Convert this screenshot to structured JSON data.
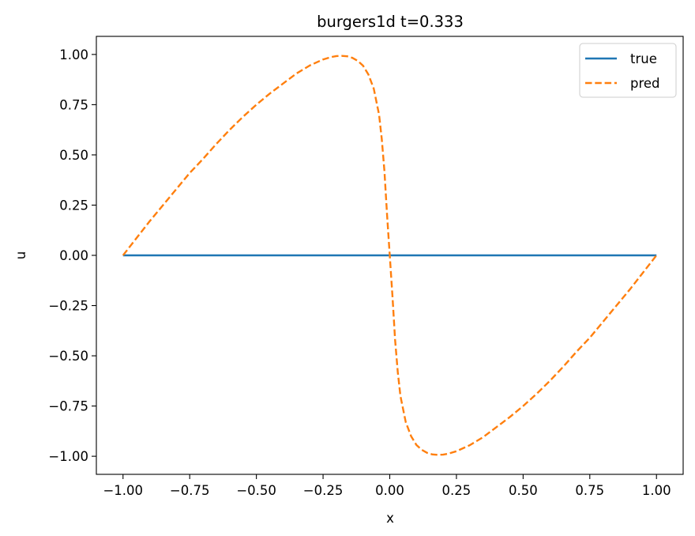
{
  "chart_data": {
    "type": "line",
    "title": "burgers1d  t=0.333",
    "xlabel": "x",
    "ylabel": "u",
    "xlim": [
      -1.1,
      1.1
    ],
    "ylim": [
      -1.09,
      1.09
    ],
    "xticks": [
      -1.0,
      -0.75,
      -0.5,
      -0.25,
      0.0,
      0.25,
      0.5,
      0.75,
      1.0
    ],
    "xtick_labels": [
      "−1.00",
      "−0.75",
      "−0.50",
      "−0.25",
      "0.00",
      "0.25",
      "0.50",
      "0.75",
      "1.00"
    ],
    "yticks": [
      1.0,
      0.75,
      0.5,
      0.25,
      0.0,
      -0.25,
      -0.5,
      -0.75,
      -1.0
    ],
    "ytick_labels": [
      "1.00",
      "0.75",
      "0.50",
      "0.25",
      "0.00",
      "−0.25",
      "−0.50",
      "−0.75",
      "−1.00"
    ],
    "grid": false,
    "legend_position": "top-right",
    "series": [
      {
        "name": "true",
        "color": "#1f77b4",
        "style": "solid",
        "x": [
          -1.0,
          1.0
        ],
        "y": [
          0.0,
          0.0
        ]
      },
      {
        "name": "pred",
        "color": "#ff7f0e",
        "style": "dashed",
        "x": [
          -1.0,
          -0.95,
          -0.9,
          -0.85,
          -0.8,
          -0.75,
          -0.7,
          -0.65,
          -0.6,
          -0.55,
          -0.5,
          -0.45,
          -0.4,
          -0.35,
          -0.3,
          -0.25,
          -0.22,
          -0.2,
          -0.18,
          -0.16,
          -0.14,
          -0.12,
          -0.1,
          -0.08,
          -0.06,
          -0.04,
          -0.03,
          -0.02,
          -0.015,
          -0.01,
          -0.005,
          0.0,
          0.005,
          0.01,
          0.015,
          0.02,
          0.03,
          0.04,
          0.06,
          0.08,
          0.1,
          0.12,
          0.14,
          0.16,
          0.18,
          0.2,
          0.22,
          0.25,
          0.3,
          0.35,
          0.4,
          0.45,
          0.5,
          0.55,
          0.6,
          0.65,
          0.7,
          0.75,
          0.8,
          0.85,
          0.9,
          0.95,
          1.0
        ],
        "y": [
          0.0,
          0.085,
          0.17,
          0.25,
          0.33,
          0.41,
          0.48,
          0.555,
          0.625,
          0.69,
          0.75,
          0.805,
          0.855,
          0.905,
          0.945,
          0.975,
          0.987,
          0.992,
          0.993,
          0.991,
          0.983,
          0.968,
          0.944,
          0.9,
          0.83,
          0.7,
          0.58,
          0.42,
          0.31,
          0.2,
          0.1,
          0.0,
          -0.1,
          -0.2,
          -0.31,
          -0.42,
          -0.58,
          -0.7,
          -0.83,
          -0.9,
          -0.944,
          -0.968,
          -0.983,
          -0.991,
          -0.993,
          -0.992,
          -0.987,
          -0.975,
          -0.945,
          -0.905,
          -0.855,
          -0.805,
          -0.75,
          -0.69,
          -0.625,
          -0.555,
          -0.48,
          -0.41,
          -0.33,
          -0.25,
          -0.17,
          -0.085,
          0.0
        ]
      }
    ]
  }
}
